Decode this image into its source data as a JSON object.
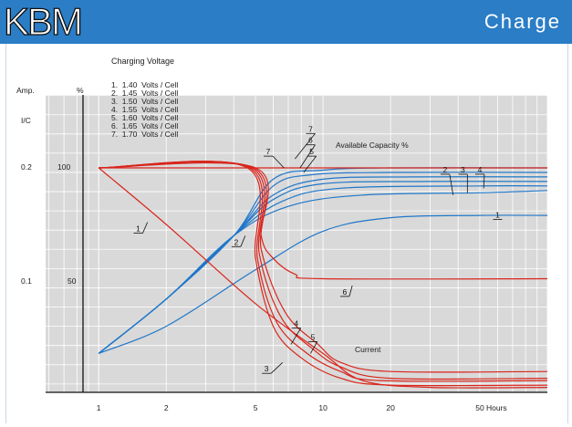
{
  "header": {
    "logo": "KBM",
    "title": "Charge"
  },
  "chart_data": {
    "type": "line",
    "title": "Charging Voltage",
    "xscale": "log",
    "xlim": [
      0.58,
      100
    ],
    "x_ticks": [
      1,
      2,
      5,
      10,
      20,
      50
    ],
    "x_tick_labels": [
      "1",
      "2",
      "5",
      "10",
      "20",
      "50"
    ],
    "xlabel": "Hours",
    "y_left_label": "Amp.",
    "y_left_ticks": [
      "I/C",
      "0.2",
      "0.1"
    ],
    "y_right_label": "%",
    "y_right_ticks": [
      "100",
      "50"
    ],
    "legend": [
      "1.  1.40  Volts / Cell",
      "2.  1.45  Volts / Cell",
      "3.  1.50  Volts / Cell",
      "4.  1.55  Volts / Cell",
      "5.  1.60  Volts / Cell",
      "6.  1.65  Volts / Cell",
      "7.  1.70  Volts / Cell"
    ],
    "annotations": {
      "capacity_label": "Available Capacity %",
      "current_label": "Current"
    },
    "capacity_series": [
      {
        "name": "1",
        "color": "#1f77c9",
        "points": [
          [
            1,
            18
          ],
          [
            2,
            30
          ],
          [
            5,
            55
          ],
          [
            10,
            72
          ],
          [
            20,
            78
          ],
          [
            50,
            79
          ],
          [
            100,
            79
          ]
        ]
      },
      {
        "name": "2",
        "color": "#1f77c9",
        "points": [
          [
            1,
            18
          ],
          [
            2,
            42
          ],
          [
            4,
            70
          ],
          [
            7,
            83
          ],
          [
            15,
            88
          ],
          [
            50,
            89
          ],
          [
            100,
            90
          ]
        ]
      },
      {
        "name": "3",
        "color": "#1f77c9",
        "points": [
          [
            1,
            18
          ],
          [
            2,
            42
          ],
          [
            4,
            70
          ],
          [
            6.5,
            85
          ],
          [
            12,
            91
          ],
          [
            50,
            92
          ],
          [
            100,
            92
          ]
        ]
      },
      {
        "name": "4",
        "color": "#1f77c9",
        "points": [
          [
            1,
            18
          ],
          [
            2,
            42
          ],
          [
            4,
            70
          ],
          [
            6,
            86
          ],
          [
            10,
            93
          ],
          [
            30,
            94
          ],
          [
            100,
            94
          ]
        ]
      },
      {
        "name": "5",
        "color": "#1f77c9",
        "points": [
          [
            1,
            18
          ],
          [
            2,
            42
          ],
          [
            4,
            70
          ],
          [
            6,
            88
          ],
          [
            10,
            95
          ],
          [
            25,
            96
          ],
          [
            100,
            96
          ]
        ]
      },
      {
        "name": "6",
        "color": "#1f77c9",
        "points": [
          [
            1,
            18
          ],
          [
            2,
            42
          ],
          [
            4,
            70
          ],
          [
            6,
            92
          ],
          [
            9,
            97
          ],
          [
            20,
            98
          ],
          [
            100,
            98
          ]
        ]
      },
      {
        "name": "7",
        "color": "#1f77c9",
        "points": [
          [
            1,
            18
          ],
          [
            2,
            42
          ],
          [
            4,
            70
          ],
          [
            6,
            95
          ],
          [
            10,
            99
          ],
          [
            20,
            100
          ],
          [
            100,
            100
          ]
        ]
      }
    ],
    "current_series": [
      {
        "name": "1",
        "color": "#d9251c",
        "points": [
          [
            1,
            100
          ],
          [
            2,
            75
          ],
          [
            5,
            40
          ],
          [
            10,
            18
          ],
          [
            15,
            6
          ],
          [
            30,
            3
          ],
          [
            100,
            3
          ]
        ]
      },
      {
        "name": "2",
        "color": "#d9251c",
        "points": [
          [
            1,
            100
          ],
          [
            4.6,
            100
          ],
          [
            5,
            60
          ],
          [
            6,
            30
          ],
          [
            8,
            16
          ],
          [
            12,
            7
          ],
          [
            20,
            4
          ],
          [
            100,
            4
          ]
        ]
      },
      {
        "name": "3",
        "color": "#d9251c",
        "points": [
          [
            1,
            100
          ],
          [
            4.7,
            100
          ],
          [
            5.1,
            60
          ],
          [
            6.2,
            32
          ],
          [
            8.5,
            18
          ],
          [
            12,
            10
          ],
          [
            18,
            6
          ],
          [
            100,
            6
          ]
        ]
      },
      {
        "name": "4",
        "color": "#d9251c",
        "points": [
          [
            1,
            100
          ],
          [
            4.8,
            100
          ],
          [
            5.2,
            62
          ],
          [
            6.5,
            34
          ],
          [
            9,
            20
          ],
          [
            12,
            12
          ],
          [
            20,
            7
          ],
          [
            100,
            7
          ]
        ]
      },
      {
        "name": "5",
        "color": "#d9251c",
        "points": [
          [
            1,
            100
          ],
          [
            4.9,
            100
          ],
          [
            5.3,
            64
          ],
          [
            6.8,
            36
          ],
          [
            9.5,
            22
          ],
          [
            12,
            14
          ],
          [
            20,
            10
          ],
          [
            100,
            10
          ]
        ]
      },
      {
        "name": "6",
        "color": "#d9251c",
        "points": [
          [
            1,
            100
          ],
          [
            5,
            100
          ],
          [
            5.3,
            70
          ],
          [
            6,
            60
          ],
          [
            7.5,
            53
          ],
          [
            10,
            51
          ],
          [
            100,
            51
          ]
        ]
      },
      {
        "name": "7",
        "color": "#d9251c",
        "points": [
          [
            1,
            100
          ],
          [
            5,
            100
          ],
          [
            6,
            100
          ],
          [
            7,
            100
          ],
          [
            10,
            100
          ],
          [
            100,
            100
          ]
        ]
      }
    ]
  }
}
